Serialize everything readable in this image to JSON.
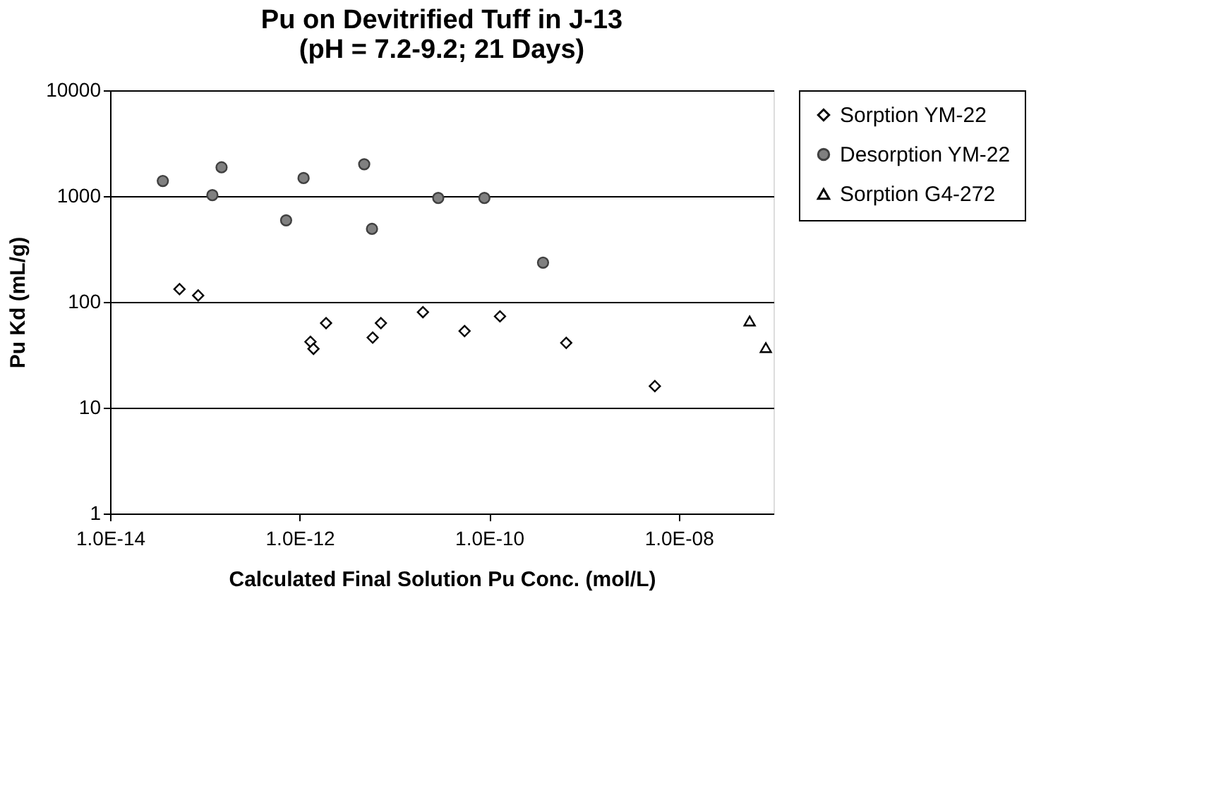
{
  "chart_data": {
    "type": "scatter",
    "title": "Pu on Devitrified Tuff in J-13\n(pH = 7.2-9.2; 21 Days)",
    "xlabel": "Calculated Final Solution Pu Conc. (mol/L)",
    "ylabel": "Pu Kd (mL/g)",
    "log": "xy",
    "grid": "y",
    "legend": "right",
    "xlim": [
      1e-14,
      1e-07
    ],
    "xticks": [
      {
        "value": 1e-14,
        "label": "1.0E-14"
      },
      {
        "value": 1e-12,
        "label": "1.0E-12"
      },
      {
        "value": 1e-10,
        "label": "1.0E-10"
      },
      {
        "value": 1e-08,
        "label": "1.0E-08"
      }
    ],
    "ylim": [
      1,
      10000
    ],
    "yticks": [
      1,
      10,
      100,
      1000,
      10000
    ],
    "series": [
      {
        "name": "Sorption YM-22",
        "color": "#000000",
        "marker": "diamond",
        "x": [
          5.4e-14,
          8.5e-14,
          1.3e-12,
          1.4e-12,
          1.9e-12,
          5.9e-12,
          7.2e-12,
          2e-11,
          5.5e-11,
          1.3e-10,
          6.5e-10,
          5.6e-09
        ],
        "values": [
          132,
          115,
          42,
          36,
          63,
          46,
          63,
          80,
          53,
          73,
          41,
          16
        ]
      },
      {
        "name": "Desorption YM-22",
        "color": "#808080",
        "marker": "circle",
        "x": [
          3.6e-14,
          1.2e-13,
          1.5e-13,
          7.2e-13,
          1.1e-12,
          4.8e-12,
          5.8e-12,
          2.9e-11,
          8.9e-11,
          3.7e-10
        ],
        "values": [
          1390,
          1020,
          1870,
          590,
          1480,
          2000,
          490,
          960,
          960,
          235
        ]
      },
      {
        "name": "Sorption G4-272",
        "color": "#000000",
        "marker": "triangle",
        "x": [
          5.6e-08,
          8.3e-08
        ],
        "values": [
          66,
          37
        ]
      }
    ]
  }
}
